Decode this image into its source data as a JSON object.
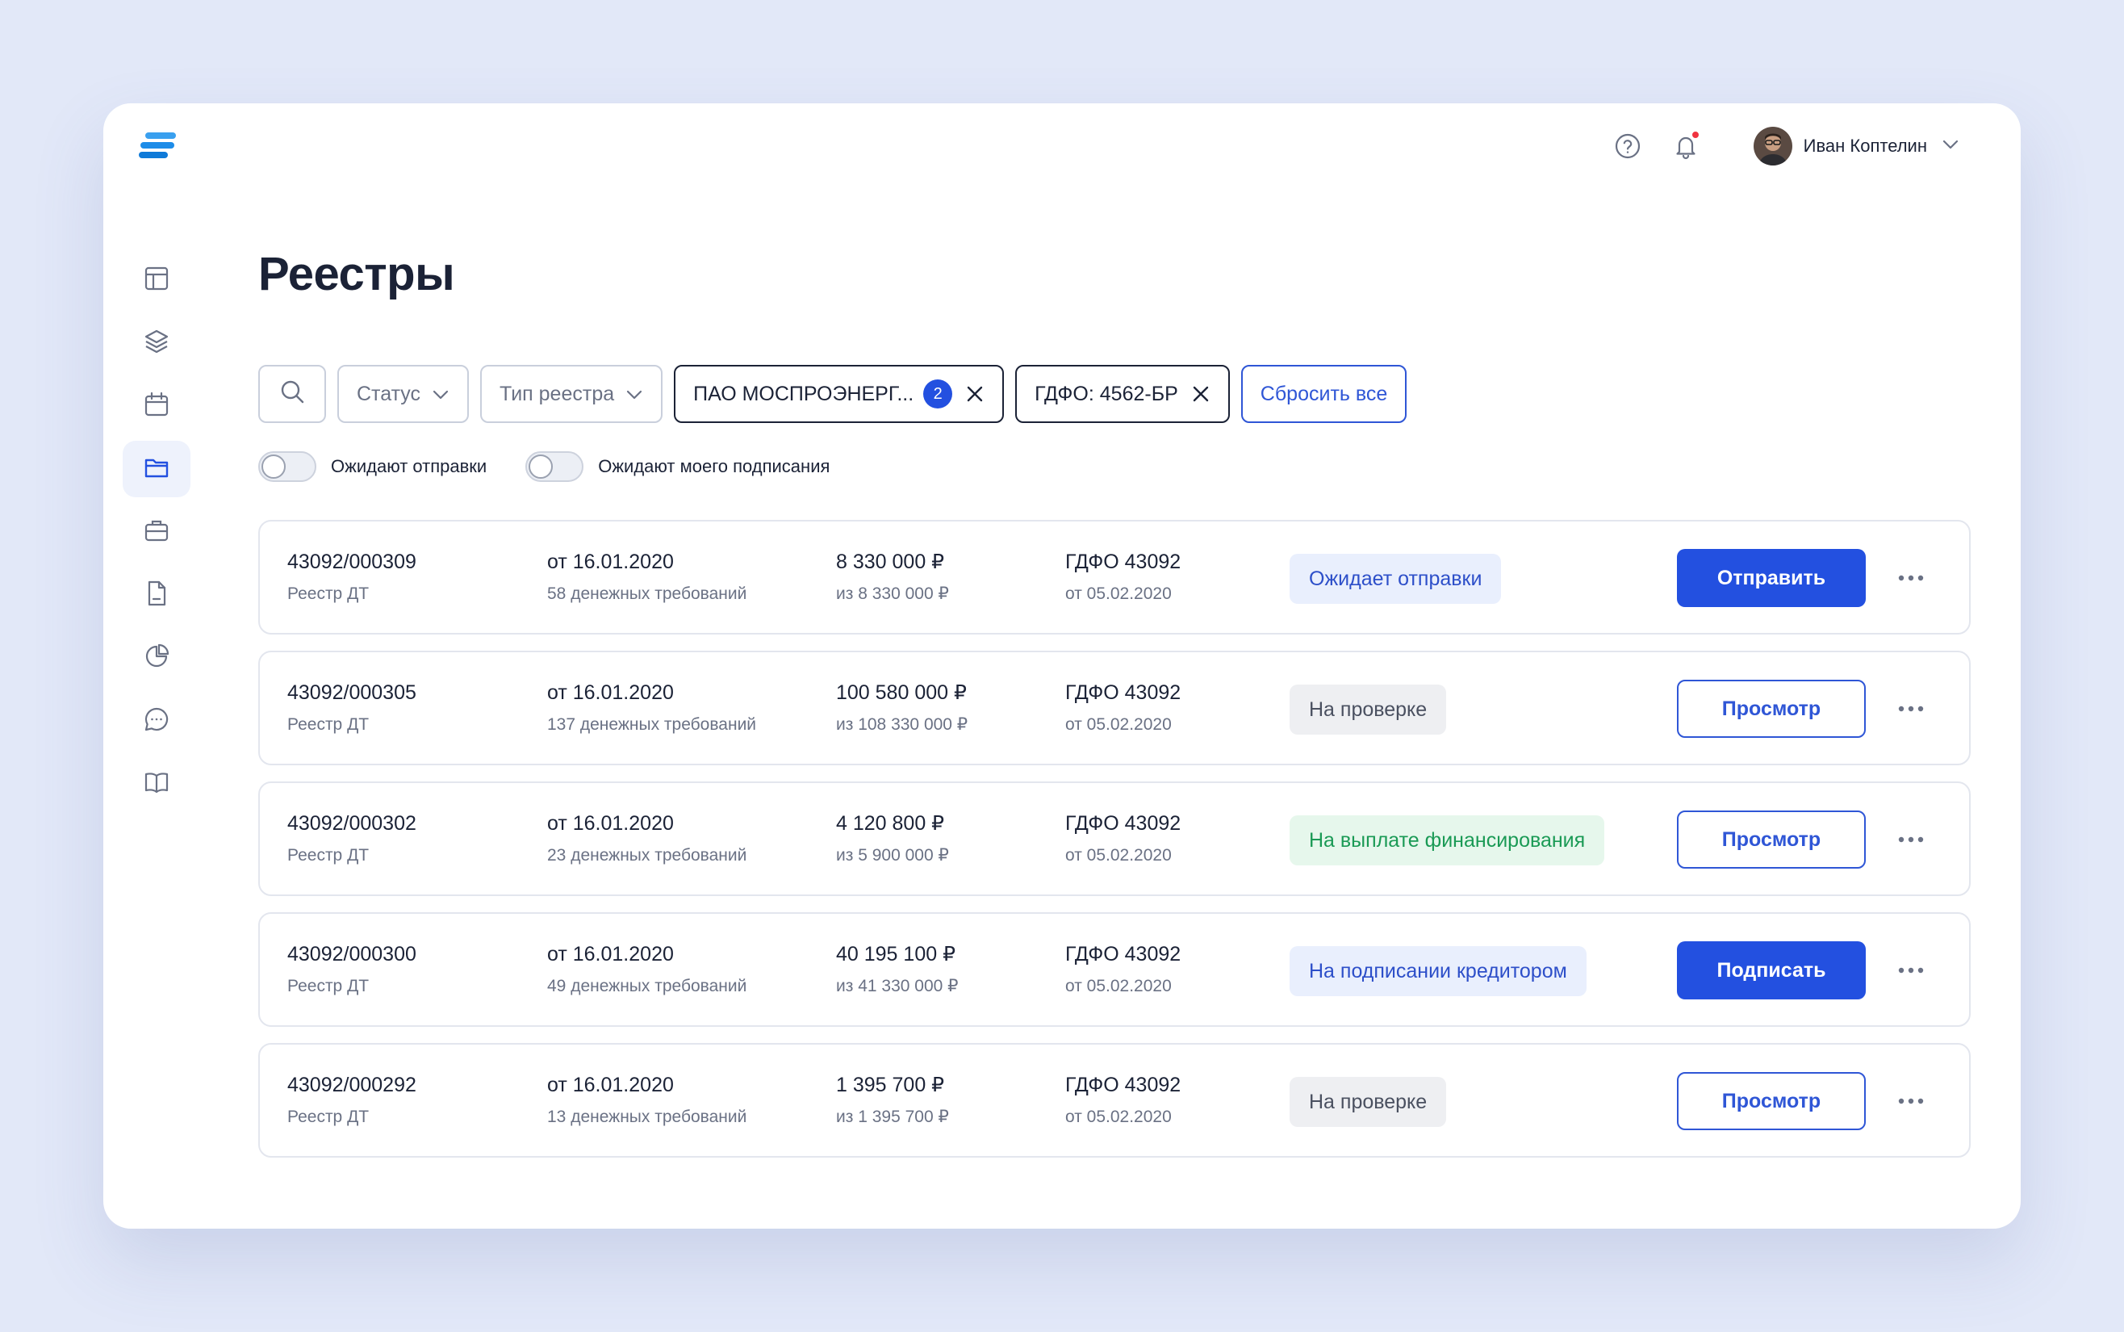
{
  "app": {
    "logo_icon": "stack-logo-icon",
    "accent": "#2350e0"
  },
  "topbar": {
    "help_icon": "help-circle-icon",
    "bell_icon": "bell-icon",
    "user_name": "Иван Коптелин"
  },
  "sidebar": {
    "items": [
      {
        "icon": "layout-icon",
        "active": false
      },
      {
        "icon": "layers-icon",
        "active": false
      },
      {
        "icon": "calendar-icon",
        "active": false
      },
      {
        "icon": "folder-icon",
        "active": true
      },
      {
        "icon": "briefcase-icon",
        "active": false
      },
      {
        "icon": "document-icon",
        "active": false
      },
      {
        "icon": "pie-chart-icon",
        "active": false
      },
      {
        "icon": "chat-icon",
        "active": false
      },
      {
        "icon": "book-icon",
        "active": false
      }
    ]
  },
  "page": {
    "title": "Реестры"
  },
  "filters": {
    "status_label": "Статус",
    "type_label": "Тип реестра",
    "company_chip": "ПАО МОСПРОЭНЕРГ...",
    "company_count": "2",
    "gdfo_chip": "ГДФО: 4562-БР",
    "reset_label": "Сбросить все"
  },
  "toggles": {
    "awaiting_send": "Ожидают отправки",
    "awaiting_my_sign": "Ожидают моего подписания"
  },
  "registries": [
    {
      "number": "43092/000309",
      "kind": "Реестр ДТ",
      "date": "от 16.01.2020",
      "claims": "58 денежных требований",
      "sum": "8 330 000 ₽",
      "sum_of": "из 8 330 000 ₽",
      "gdfo": "ГДФО 43092",
      "gdfo_date": "от 05.02.2020",
      "status": "Ожидает отправки",
      "status_tone": "blue",
      "action": "Отправить",
      "action_style": "primary"
    },
    {
      "number": "43092/000305",
      "kind": "Реестр ДТ",
      "date": "от 16.01.2020",
      "claims": "137 денежных требований",
      "sum": "100 580 000 ₽",
      "sum_of": "из 108 330 000 ₽",
      "gdfo": "ГДФО 43092",
      "gdfo_date": "от 05.02.2020",
      "status": "На проверке",
      "status_tone": "gray",
      "action": "Просмотр",
      "action_style": "secondary"
    },
    {
      "number": "43092/000302",
      "kind": "Реестр ДТ",
      "date": "от 16.01.2020",
      "claims": "23 денежных требований",
      "sum": "4 120 800 ₽",
      "sum_of": "из 5 900 000 ₽",
      "gdfo": "ГДФО 43092",
      "gdfo_date": "от 05.02.2020",
      "status": "На выплате финансирования",
      "status_tone": "green",
      "action": "Просмотр",
      "action_style": "secondary"
    },
    {
      "number": "43092/000300",
      "kind": "Реестр ДТ",
      "date": "от 16.01.2020",
      "claims": "49 денежных требований",
      "sum": "40 195 100 ₽",
      "sum_of": "из 41 330 000 ₽",
      "gdfo": "ГДФО 43092",
      "gdfo_date": "от 05.02.2020",
      "status": "На подписании кредитором",
      "status_tone": "blue",
      "action": "Подписать",
      "action_style": "primary"
    },
    {
      "number": "43092/000292",
      "kind": "Реестр ДТ",
      "date": "от 16.01.2020",
      "claims": "13 денежных требований",
      "sum": "1 395 700 ₽",
      "sum_of": "из 1 395 700 ₽",
      "gdfo": "ГДФО 43092",
      "gdfo_date": "от 05.02.2020",
      "status": "На проверке",
      "status_tone": "gray",
      "action": "Просмотр",
      "action_style": "secondary"
    }
  ]
}
